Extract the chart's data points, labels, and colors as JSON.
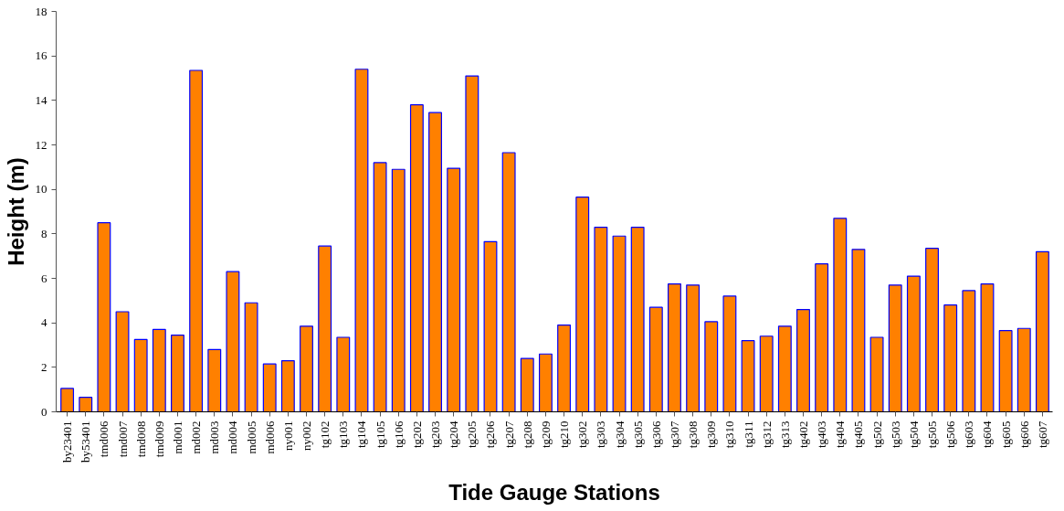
{
  "chart_data": {
    "type": "bar",
    "xlabel": "Tide Gauge Stations",
    "ylabel": "Height (m)",
    "categories": [
      "by23401",
      "by53401",
      "tmd006",
      "tmd007",
      "tmd008",
      "tmd009",
      "md001",
      "md002",
      "md003",
      "md004",
      "md005",
      "md006",
      "ny001",
      "ny002",
      "tg102",
      "tg103",
      "tg104",
      "tg105",
      "tg106",
      "tg202",
      "tg203",
      "tg204",
      "tg205",
      "tg206",
      "tg207",
      "tg208",
      "tg209",
      "tg210",
      "tg302",
      "tg303",
      "tg304",
      "tg305",
      "tg306",
      "tg307",
      "tg308",
      "tg309",
      "tg310",
      "tg311",
      "tg312",
      "tg313",
      "tg402",
      "tg403",
      "tg404",
      "tg405",
      "tg502",
      "tg503",
      "tg504",
      "tg505",
      "tg506",
      "tg603",
      "tg604",
      "tg605",
      "tg606",
      "tg607"
    ],
    "series": [
      {
        "color": "#ff8000",
        "values": [
          1.05,
          0.65,
          8.5,
          4.5,
          3.25,
          3.7,
          3.45,
          15.35,
          2.8,
          6.3,
          4.9,
          2.15,
          2.3,
          3.85,
          7.45,
          3.35,
          15.4,
          11.2,
          10.9,
          13.8,
          13.45,
          10.95,
          15.1,
          7.65,
          11.65,
          2.4,
          2.6,
          3.9,
          9.65,
          8.3,
          7.9,
          8.3,
          4.7,
          5.75,
          5.7,
          4.05,
          5.2,
          3.2,
          3.4,
          3.85,
          4.6,
          6.65,
          8.7,
          7.3,
          3.35,
          5.7,
          6.1,
          7.35,
          4.8,
          5.45,
          5.75,
          3.65,
          3.75,
          7.2
        ]
      }
    ],
    "ylim": [
      0,
      18
    ],
    "yticks": [
      0,
      2,
      4,
      6,
      8,
      10,
      12,
      14,
      16,
      18
    ],
    "grid": false
  }
}
